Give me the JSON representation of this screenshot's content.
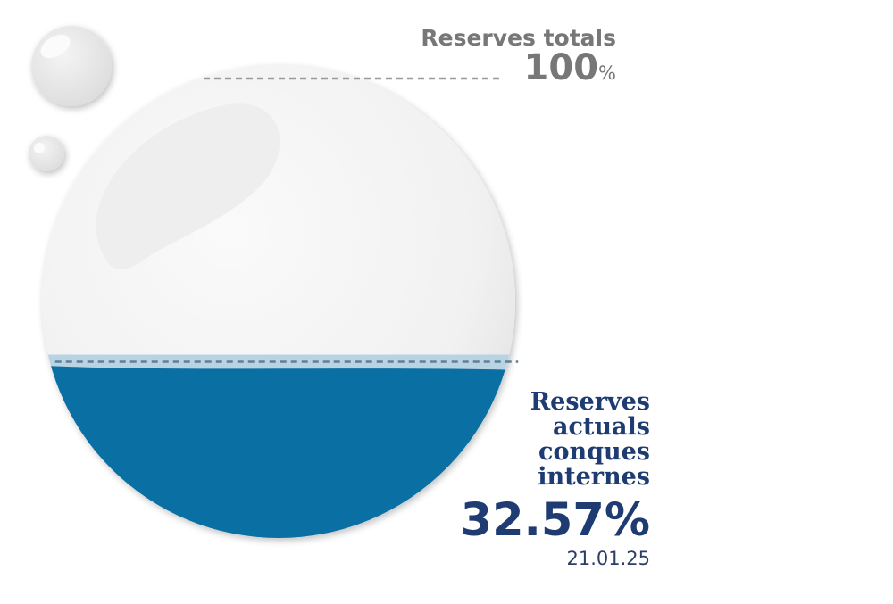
{
  "chart_data": {
    "type": "gauge",
    "total": {
      "label": "Reserves totals",
      "value": "100",
      "unit": "%"
    },
    "current": {
      "label_lines": [
        "Reserves",
        "actuals",
        "conques",
        "internes"
      ],
      "value": 32.57,
      "value_text": "32.57%",
      "date": "21.01.25"
    },
    "colors": {
      "water": "#0a6fa3",
      "water_surface": "#b8d4e3",
      "drop": "#f5f5f5",
      "current_text": "#1e3c72",
      "total_text": "#777777"
    }
  }
}
